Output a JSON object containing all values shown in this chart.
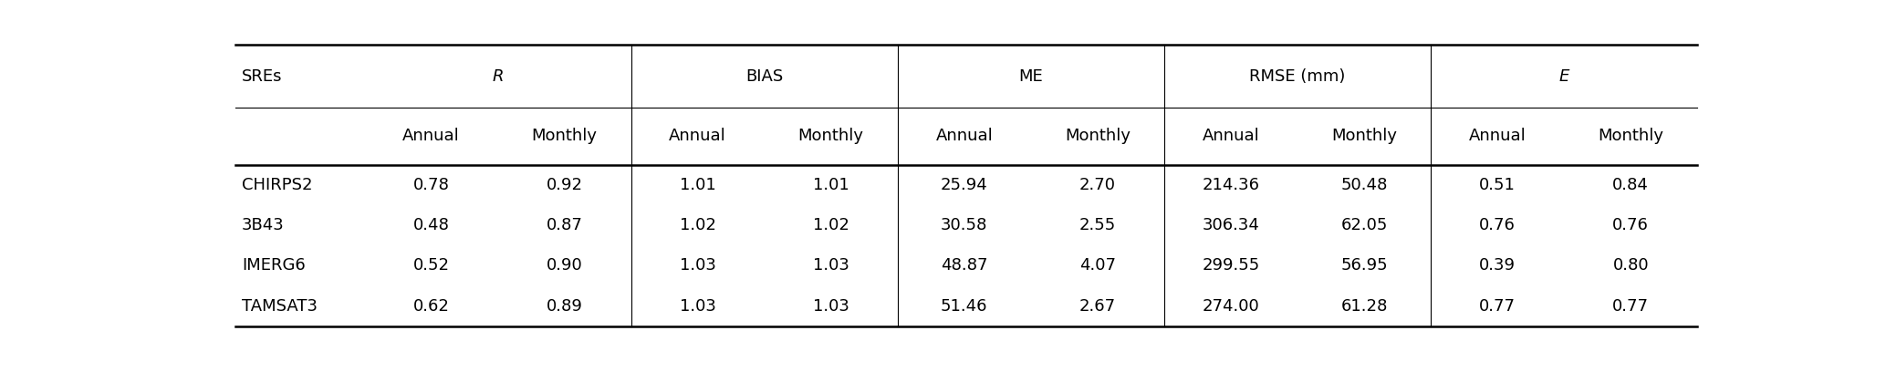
{
  "sub_headers": [
    "Annual",
    "Monthly",
    "Annual",
    "Monthly",
    "Annual",
    "Monthly",
    "Annual",
    "Monthly",
    "Annual",
    "Monthly"
  ],
  "rows": [
    [
      "CHIRPS2",
      "0.78",
      "0.92",
      "1.01",
      "1.01",
      "25.94",
      "2.70",
      "214.36",
      "50.48",
      "0.51",
      "0.84"
    ],
    [
      "3B43",
      "0.48",
      "0.87",
      "1.02",
      "1.02",
      "30.58",
      "2.55",
      "306.34",
      "62.05",
      "0.76",
      "0.76"
    ],
    [
      "IMERG6",
      "0.52",
      "0.90",
      "1.03",
      "1.03",
      "48.87",
      "4.07",
      "299.55",
      "56.95",
      "0.39",
      "0.80"
    ],
    [
      "TAMSAT3",
      "0.62",
      "0.89",
      "1.03",
      "1.03",
      "51.46",
      "2.67",
      "274.00",
      "61.28",
      "0.77",
      "0.77"
    ]
  ],
  "group_labels": [
    "R",
    "BIAS",
    "ME",
    "RMSE (mm)",
    "E"
  ],
  "group_italic": [
    true,
    false,
    false,
    false,
    true
  ],
  "figsize": [
    20.67,
    4.08
  ],
  "dpi": 100,
  "font_size": 13,
  "bg_color": "#ffffff",
  "text_color": "#000000",
  "lw_thick": 1.8,
  "lw_thin": 0.8
}
